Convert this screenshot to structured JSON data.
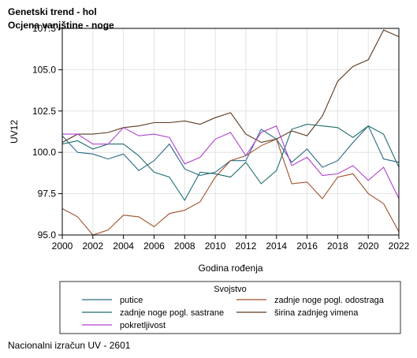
{
  "header": {
    "title": "Genetski trend - hol",
    "subtitle": "Ocjena vanjštine - noge"
  },
  "footer": {
    "text": "Nacionalni izračun UV - 2601"
  },
  "chart_data": {
    "type": "line",
    "xlabel": "Godina rođenja",
    "ylabel": "UV12",
    "xlim": [
      2000,
      2022
    ],
    "ylim": [
      95.0,
      107.5
    ],
    "xticks": [
      2000,
      2002,
      2004,
      2006,
      2008,
      2010,
      2012,
      2014,
      2016,
      2018,
      2020,
      2022
    ],
    "yticks": [
      95.0,
      97.5,
      100.0,
      102.5,
      105.0,
      107.5
    ],
    "ytick_labels": [
      "95.0",
      "97.5",
      "100.0",
      "102.5",
      "105.0",
      "107.5"
    ],
    "grid": true,
    "legend_title": "Svojstvo",
    "legend_position": "bottom",
    "x": [
      2000,
      2001,
      2002,
      2003,
      2004,
      2005,
      2006,
      2007,
      2008,
      2009,
      2010,
      2011,
      2012,
      2013,
      2014,
      2015,
      2016,
      2017,
      2018,
      2019,
      2020,
      2021,
      2022
    ],
    "series": [
      {
        "name": "putice",
        "color": "#2b6a86",
        "values": [
          101.0,
          100.0,
          99.9,
          99.6,
          99.9,
          98.9,
          99.5,
          100.5,
          99.0,
          98.6,
          98.8,
          99.5,
          99.5,
          101.4,
          100.8,
          99.4,
          100.2,
          99.1,
          99.5,
          100.6,
          101.6,
          99.6,
          99.4
        ]
      },
      {
        "name": "zadnje noge pogl. odostraga",
        "color": "#a0522d",
        "values": [
          96.6,
          96.1,
          95.0,
          95.3,
          96.2,
          96.1,
          95.5,
          96.3,
          96.5,
          97.0,
          98.5,
          99.5,
          99.8,
          100.4,
          100.8,
          98.1,
          98.2,
          97.2,
          98.5,
          98.7,
          97.5,
          96.9,
          95.2
        ]
      },
      {
        "name": "zadnje noge pogl. sastrane",
        "color": "#1f6e6e",
        "values": [
          100.5,
          100.7,
          100.2,
          100.5,
          100.5,
          99.8,
          98.8,
          98.5,
          97.1,
          98.8,
          98.7,
          98.5,
          99.4,
          98.1,
          98.9,
          101.4,
          101.7,
          101.6,
          101.5,
          100.9,
          101.6,
          101.1,
          99.1
        ]
      },
      {
        "name": "širina zadnjeg vimena",
        "color": "#5c3a21",
        "values": [
          100.6,
          101.1,
          101.1,
          101.2,
          101.5,
          101.6,
          101.8,
          101.8,
          101.9,
          101.7,
          102.1,
          102.4,
          101.1,
          100.6,
          100.8,
          101.3,
          101.0,
          102.2,
          104.3,
          105.2,
          105.6,
          107.4,
          107.0
        ]
      },
      {
        "name": "pokretljivost",
        "color": "#b041d0",
        "values": [
          101.1,
          101.1,
          100.5,
          100.5,
          101.5,
          101.0,
          101.1,
          100.9,
          99.3,
          99.7,
          100.8,
          101.2,
          99.8,
          101.2,
          101.6,
          99.2,
          99.7,
          98.6,
          98.7,
          99.2,
          98.3,
          99.1,
          97.2
        ]
      }
    ]
  }
}
